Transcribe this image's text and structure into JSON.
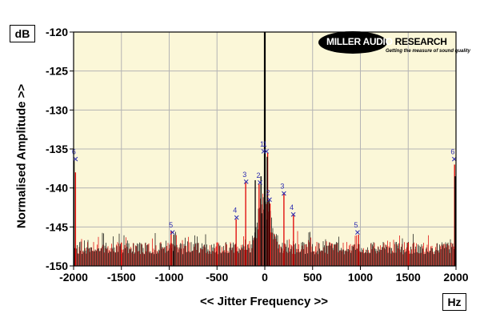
{
  "y_unit": "dB",
  "x_unit": "Hz",
  "logo": {
    "brand": "MILLER AUDIO",
    "brand_suffix": "RESEARCH",
    "tagline": "Getting the measure of sound quality"
  },
  "colors": {
    "plot_bg": "#fbf7d8",
    "grid": "#b4b4b4",
    "series_red": "#e00000",
    "series_black": "#000000",
    "marker": "#2b2bb0"
  },
  "chart_data": {
    "type": "line",
    "xlabel": "<< Jitter Frequency >>",
    "ylabel": "Normalised Amplitude >>",
    "xlim": [
      -2000,
      2000
    ],
    "ylim": [
      -150,
      -120
    ],
    "x_ticks": [
      "-2000",
      "-1500",
      "-1000",
      "-500",
      "0",
      "500",
      "1000",
      "1500",
      "2000"
    ],
    "y_ticks": [
      "-120",
      "-125",
      "-130",
      "-135",
      "-140",
      "-145",
      "-150"
    ],
    "grid": true,
    "noise_floor_db": -148.5,
    "carrier": {
      "x": 0,
      "y": -120
    },
    "series": [
      {
        "color": "red",
        "values": [
          [
            -1980,
            -138
          ],
          [
            -1500,
            -147
          ],
          [
            -980,
            -145.5
          ],
          [
            -500,
            -147
          ],
          [
            -300,
            -144
          ],
          [
            -200,
            -139.2
          ],
          [
            -60,
            -139.5
          ],
          [
            30,
            -135.5
          ],
          [
            55,
            -142
          ],
          [
            200,
            -140.7
          ],
          [
            300,
            -143.4
          ],
          [
            980,
            -146
          ],
          [
            1500,
            -147
          ],
          [
            1985,
            -137
          ]
        ]
      },
      {
        "color": "black",
        "values": [
          [
            -1995,
            -136.5
          ],
          [
            -950,
            -146
          ],
          [
            -100,
            -139
          ],
          [
            -40,
            -138.5
          ],
          [
            0,
            -120
          ],
          [
            25,
            -136
          ],
          [
            45,
            -141.5
          ],
          [
            1990,
            -138.5
          ]
        ]
      }
    ],
    "markers": [
      {
        "label": "6",
        "x": -1980,
        "y": -136.3
      },
      {
        "label": "5",
        "x": -965,
        "y": -145.7
      },
      {
        "label": "4",
        "x": -295,
        "y": -143.8
      },
      {
        "label": "3",
        "x": -195,
        "y": -139.2
      },
      {
        "label": "2",
        "x": -50,
        "y": -139.3
      },
      {
        "label": "1",
        "x": -12,
        "y": -135.3
      },
      {
        "label": "1",
        "x": 18,
        "y": -135.3
      },
      {
        "label": "2",
        "x": 50,
        "y": -141.5
      },
      {
        "label": "3",
        "x": 200,
        "y": -140.7
      },
      {
        "label": "4",
        "x": 298,
        "y": -143.4
      },
      {
        "label": "5",
        "x": 970,
        "y": -145.7
      },
      {
        "label": "6",
        "x": 1982,
        "y": -136.3
      }
    ]
  }
}
